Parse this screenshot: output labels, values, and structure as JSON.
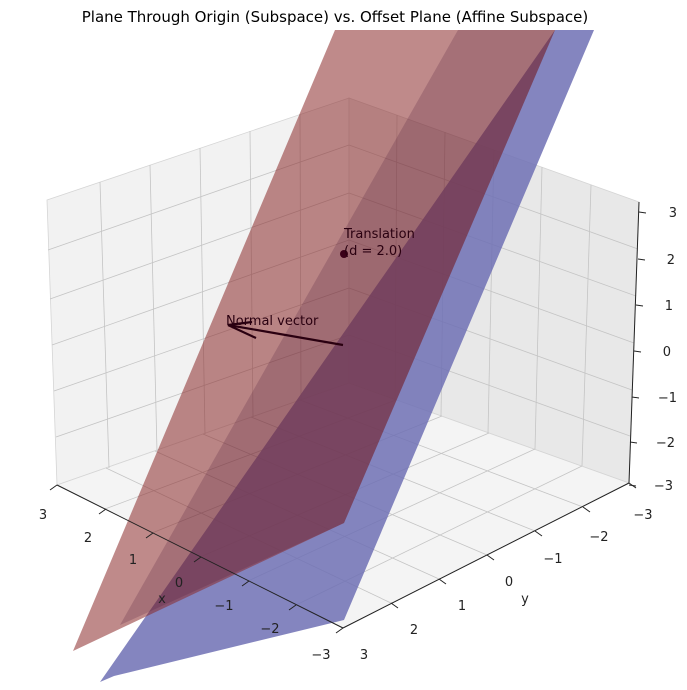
{
  "chart_data": {
    "type": "3d-surface",
    "title": "Plane Through Origin (Subspace) vs. Offset Plane (Affine Subspace)",
    "xlabel": "x",
    "ylabel": "y",
    "zlabel": "",
    "xlim": [
      -3,
      3
    ],
    "ylim": [
      -3,
      3
    ],
    "zlim": [
      -3,
      3
    ],
    "xticks": [
      "3",
      "2",
      "1",
      "0",
      "−1",
      "−2",
      "−3"
    ],
    "yticks": [
      "−3",
      "−2",
      "−1",
      "0",
      "1",
      "2",
      "3"
    ],
    "zticks": [
      "3",
      "2",
      "1",
      "0",
      "−1",
      "−2",
      "−3"
    ],
    "grid": true,
    "view": {
      "elevation_deg": 30,
      "azimuth_deg": -135
    },
    "series": [
      {
        "color": "#6f70b4",
        "opacity": 0.85
      },
      {
        "color": "#8b2a2a",
        "opacity": 0.55
      }
    ],
    "annotations": [
      {
        "text": "Normal vector",
        "arrow_from": [
          0,
          0,
          0
        ],
        "arrow_to": [
          1,
          -1,
          1
        ]
      },
      {
        "text": "Translation\n(d = 2.0)",
        "point": [
          0,
          0,
          2
        ]
      }
    ]
  }
}
